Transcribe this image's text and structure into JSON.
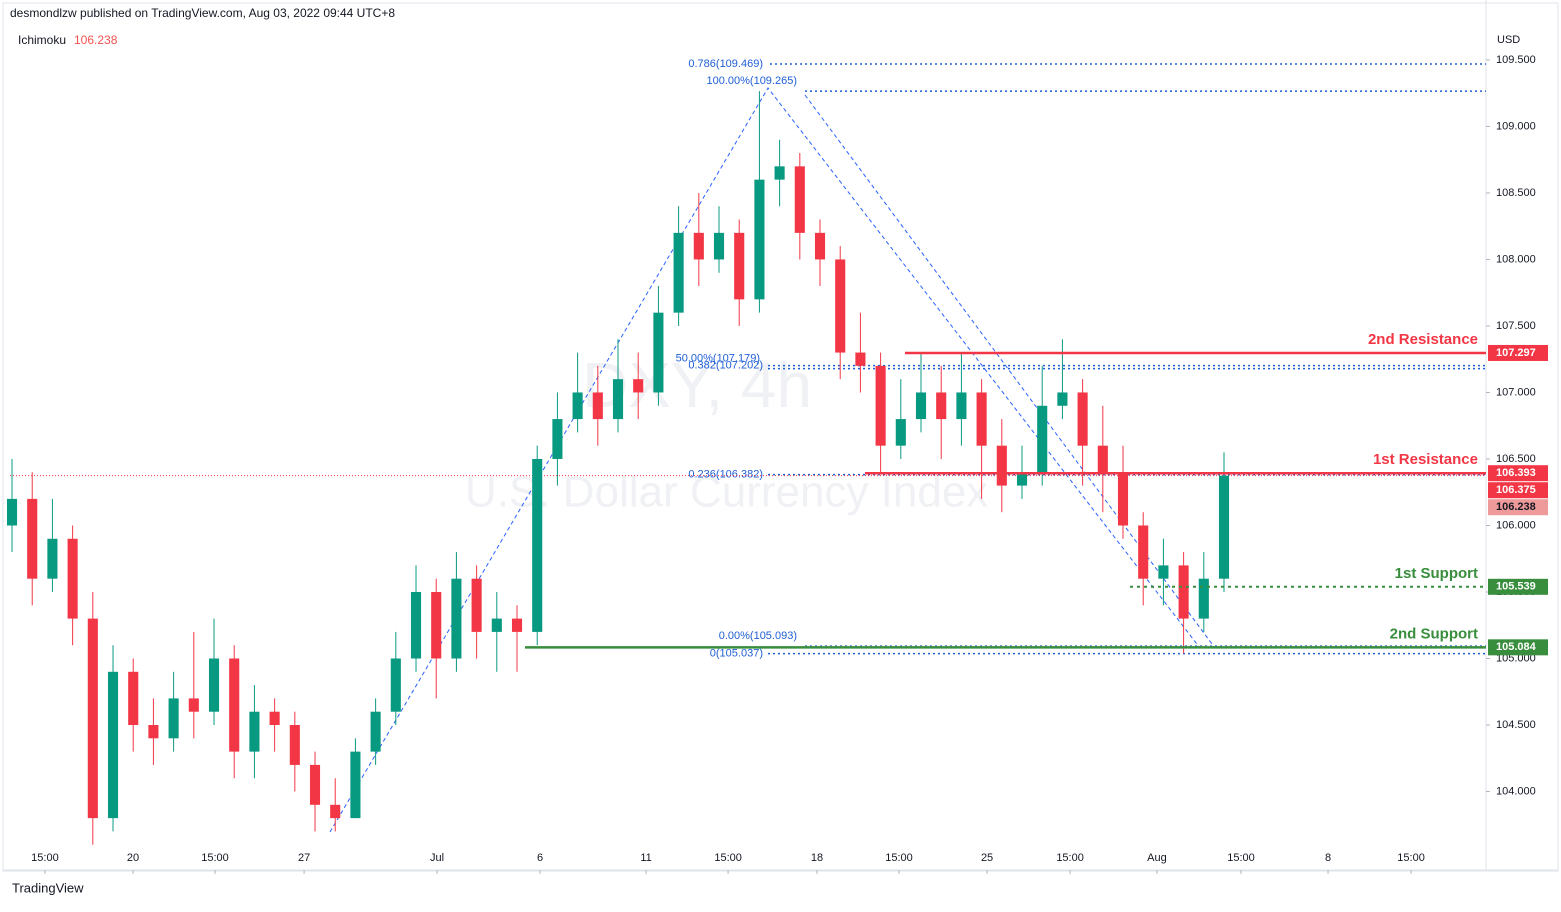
{
  "header": {
    "publisher": "desmondlzw published on TradingView.com, Aug 03, 2022 09:44 UTC+8",
    "indicator": "Ichimoku",
    "indicator_value": 106.238,
    "currency": "USD",
    "watermark_symbol": "DXY, 4h",
    "watermark_name": "U.S. Dollar Currency Index",
    "footer": "TradingView"
  },
  "chart_data": {
    "type": "candlestick",
    "up_color": "#089981",
    "down_color": "#f23645",
    "open": [
      106.0,
      106.2,
      105.6,
      105.9,
      105.3,
      103.8,
      104.9,
      104.5,
      104.4,
      104.7,
      104.6,
      105.0,
      104.3,
      104.6,
      104.5,
      104.2,
      103.9,
      103.8,
      104.3,
      104.6,
      105.0,
      105.5,
      105.0,
      105.6,
      105.2,
      105.3,
      105.2,
      106.5,
      106.8,
      107.0,
      106.8,
      107.1,
      107.0,
      107.6,
      108.2,
      108.0,
      108.2,
      107.7,
      108.6,
      108.7,
      108.2,
      108.0,
      107.3,
      107.2,
      106.6,
      106.8,
      107.0,
      106.8,
      107.0,
      106.6,
      106.3,
      106.4,
      106.9,
      107.0,
      106.6,
      106.4,
      106.0,
      105.6,
      105.7,
      105.3,
      105.6
    ],
    "high": [
      106.5,
      106.4,
      106.2,
      106.0,
      105.5,
      105.1,
      105.0,
      104.7,
      104.9,
      105.2,
      105.3,
      105.1,
      104.8,
      104.7,
      104.6,
      104.3,
      104.1,
      104.4,
      104.7,
      105.2,
      105.7,
      105.6,
      105.8,
      105.7,
      105.5,
      105.4,
      106.6,
      107.0,
      107.3,
      107.2,
      107.4,
      107.3,
      107.8,
      108.4,
      108.5,
      108.4,
      108.3,
      109.265,
      108.9,
      108.8,
      108.3,
      108.1,
      107.6,
      107.3,
      107.1,
      107.3,
      107.2,
      107.3,
      107.1,
      106.8,
      106.6,
      107.2,
      107.4,
      107.1,
      106.9,
      106.6,
      106.1,
      105.9,
      105.8,
      105.8,
      106.55
    ],
    "low": [
      105.8,
      105.4,
      105.5,
      105.1,
      103.6,
      103.7,
      104.3,
      104.2,
      104.3,
      104.4,
      104.5,
      104.1,
      104.1,
      104.3,
      104.0,
      103.7,
      103.7,
      103.8,
      104.2,
      104.5,
      104.9,
      104.7,
      104.9,
      105.0,
      104.9,
      104.9,
      105.1,
      106.3,
      106.7,
      106.6,
      106.7,
      106.8,
      106.9,
      107.5,
      107.8,
      107.9,
      107.5,
      107.6,
      108.4,
      108.0,
      107.8,
      107.1,
      107.0,
      106.4,
      106.5,
      106.7,
      106.5,
      106.6,
      106.2,
      106.1,
      106.2,
      106.3,
      106.8,
      106.3,
      106.1,
      105.9,
      105.4,
      105.4,
      105.037,
      105.2,
      105.5
    ],
    "close": [
      106.2,
      105.6,
      105.9,
      105.3,
      103.8,
      104.9,
      104.5,
      104.4,
      104.7,
      104.6,
      105.0,
      104.3,
      104.6,
      104.5,
      104.2,
      103.9,
      103.8,
      104.3,
      104.6,
      105.0,
      105.5,
      105.0,
      105.6,
      105.2,
      105.3,
      105.2,
      106.5,
      106.8,
      107.0,
      106.8,
      107.1,
      107.0,
      107.6,
      108.2,
      108.0,
      108.2,
      107.7,
      108.6,
      108.7,
      108.2,
      108.0,
      107.3,
      107.2,
      106.6,
      106.8,
      107.0,
      106.8,
      107.0,
      106.6,
      106.3,
      106.4,
      106.9,
      107.0,
      106.6,
      106.4,
      106.0,
      105.6,
      105.7,
      105.3,
      105.6,
      106.375
    ],
    "xlim": [
      -0.1,
      72.97
    ],
    "xticks": [
      {
        "value": 1.63,
        "label": "15:00"
      },
      {
        "value": 5.99,
        "label": "20"
      },
      {
        "value": 10.05,
        "label": "15:00"
      },
      {
        "value": 14.46,
        "label": "27"
      },
      {
        "value": 21.04,
        "label": "Jul"
      },
      {
        "value": 26.14,
        "label": "6"
      },
      {
        "value": 31.39,
        "label": "11"
      },
      {
        "value": 35.45,
        "label": "15:00"
      },
      {
        "value": 39.85,
        "label": "18"
      },
      {
        "value": 43.91,
        "label": "15:00"
      },
      {
        "value": 48.27,
        "label": "25"
      },
      {
        "value": 52.38,
        "label": "15:00"
      },
      {
        "value": 56.68,
        "label": "Aug"
      },
      {
        "value": 60.84,
        "label": "15:00"
      },
      {
        "value": 65.15,
        "label": "8"
      },
      {
        "value": 69.26,
        "label": "15:00"
      }
    ],
    "ylim": [
      103.41,
      109.74
    ],
    "yticks": [
      {
        "value": 104,
        "label": "104.000"
      },
      {
        "value": 104.5,
        "label": "104.500"
      },
      {
        "value": 105,
        "label": "105.000"
      },
      {
        "value": 105.5,
        "label": "105.500"
      },
      {
        "value": 106,
        "label": "106.000"
      },
      {
        "value": 106.5,
        "label": "106.500"
      },
      {
        "value": 107,
        "label": "107.000"
      },
      {
        "value": 107.5,
        "label": "107.500"
      },
      {
        "value": 108,
        "label": "108.000"
      },
      {
        "value": 108.5,
        "label": "108.500"
      },
      {
        "value": 109,
        "label": "109.000"
      },
      {
        "value": 109.5,
        "label": "109.500"
      }
    ],
    "fib_levels": [
      {
        "label": "0.786(109.469)",
        "value": 109.469
      },
      {
        "label": "100.00%(109.265)",
        "value": 109.265
      },
      {
        "label": "50.00%(107.179)",
        "value": 107.179
      },
      {
        "label": "0.382(107.202)",
        "value": 107.202
      },
      {
        "label": "0.236(106.382)",
        "value": 106.382
      },
      {
        "label": "0.00%(105.093)",
        "value": 105.093
      },
      {
        "label": "0(105.037)",
        "value": 105.037
      }
    ],
    "fib_color": "#1f5fd6",
    "levels": [
      {
        "label": "2nd Resistance",
        "value": 107.297,
        "color": "#f23645"
      },
      {
        "label": "1st Resistance",
        "value": 106.393,
        "color": "#f23645"
      },
      {
        "label": "1st Support",
        "value": 105.539,
        "color": "#388e3c"
      },
      {
        "label": "2nd Support",
        "value": 105.084,
        "color": "#388e3c"
      }
    ],
    "price_badges": [
      {
        "value": 106.375,
        "color": "#f23645"
      },
      {
        "value": 106.238,
        "color": "#ef9a9a"
      }
    ]
  }
}
